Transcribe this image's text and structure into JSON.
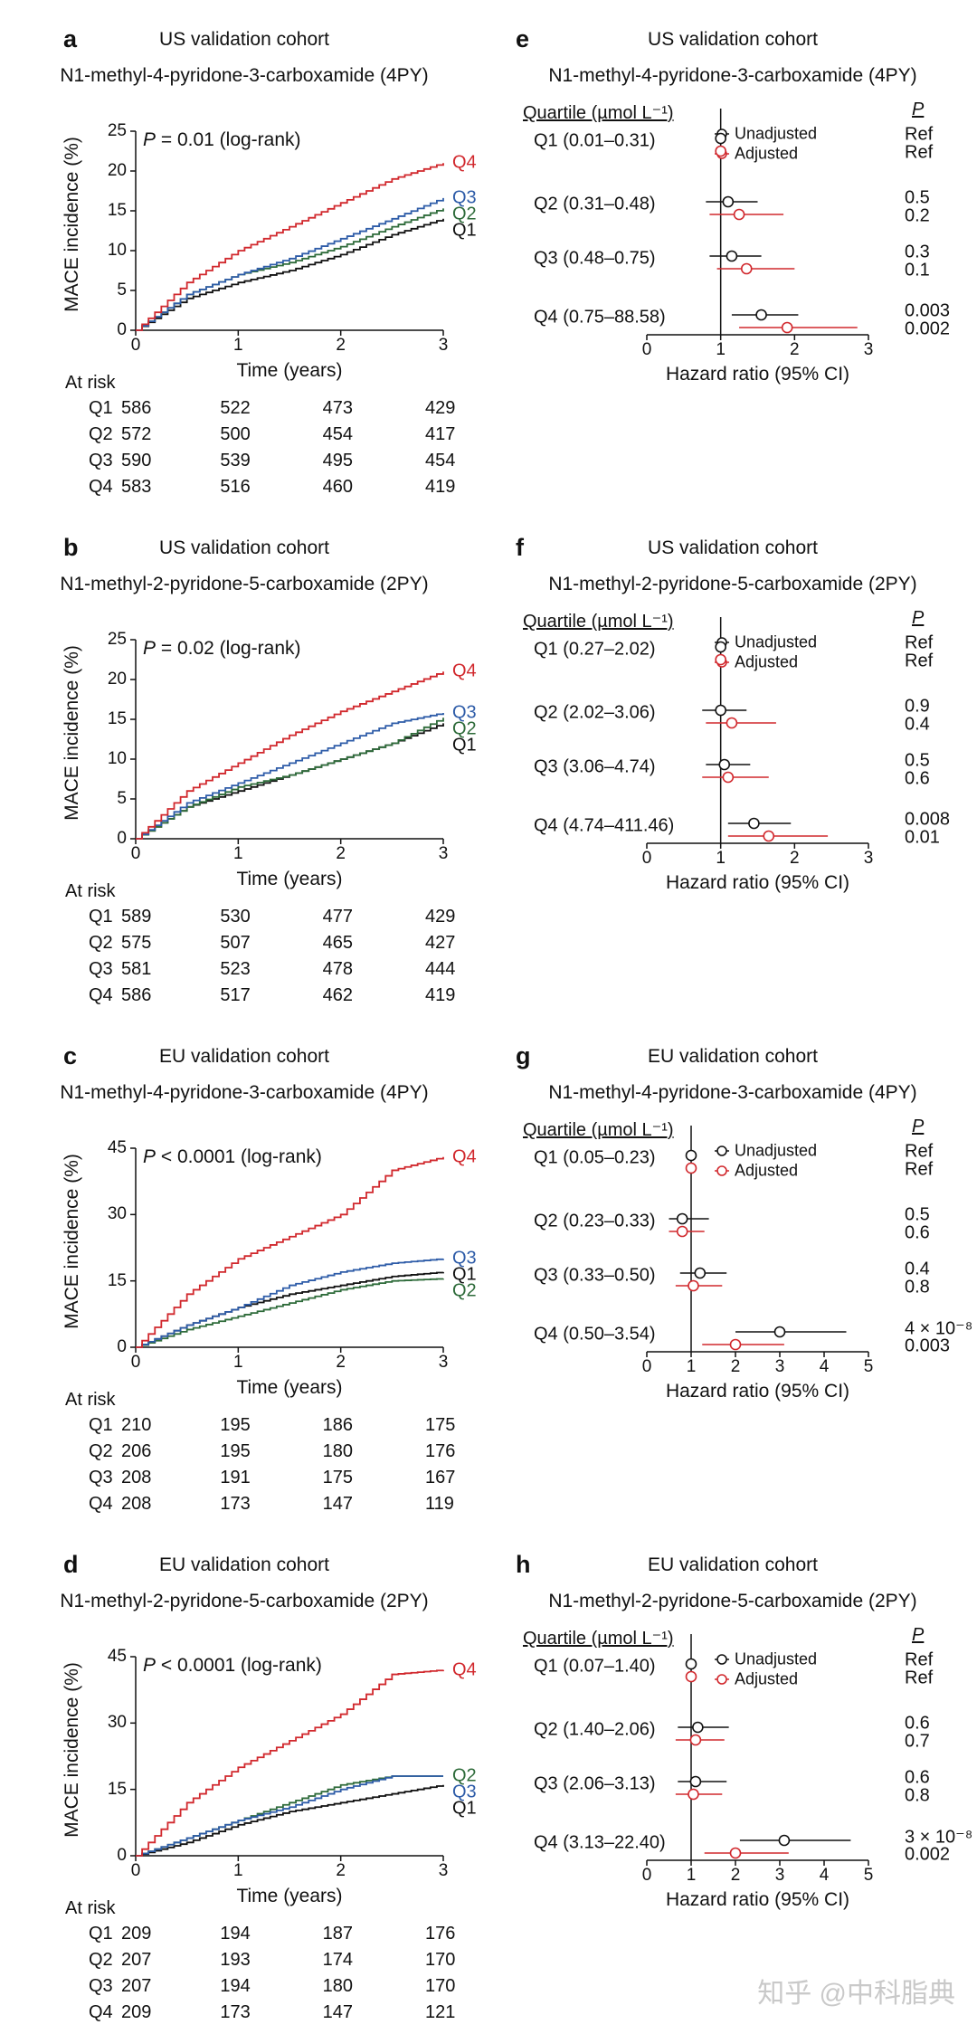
{
  "colors": {
    "Q1": "#111111",
    "Q2": "#2e6b3a",
    "Q3": "#2e5ca8",
    "Q4": "#d1282d",
    "unadjusted": "#111111",
    "adjusted": "#d1282d"
  },
  "watermark": "知乎 @中科脂典",
  "chart_data": [
    {
      "panel": "a",
      "type": "line",
      "subtitle": "US validation cohort",
      "title": "N1-methyl-4-pyridone-3-carboxamide (4PY)",
      "pvalue": "P = 0.01 (log-rank)",
      "xlabel": "Time (years)",
      "ylabel": "MACE incidence (%)",
      "xlim": [
        0,
        3
      ],
      "ylim": [
        0,
        25
      ],
      "xticks": [
        "0",
        "1",
        "2",
        "3"
      ],
      "yticks": [
        "0",
        "5",
        "10",
        "15",
        "20",
        "25"
      ],
      "series": [
        {
          "name": "Q1",
          "x": [
            0,
            0.5,
            1,
            1.5,
            2,
            2.5,
            3
          ],
          "y": [
            0,
            4,
            6,
            7.5,
            9.5,
            12,
            14
          ]
        },
        {
          "name": "Q2",
          "x": [
            0,
            0.5,
            1,
            1.5,
            2,
            2.5,
            3
          ],
          "y": [
            0,
            4.5,
            7,
            8.5,
            10.5,
            13,
            15.3
          ]
        },
        {
          "name": "Q3",
          "x": [
            0,
            0.5,
            1,
            1.5,
            2,
            2.5,
            3
          ],
          "y": [
            0,
            4.5,
            7,
            9,
            11.5,
            14,
            16.6
          ]
        },
        {
          "name": "Q4",
          "x": [
            0,
            0.5,
            1,
            1.5,
            2,
            2.5,
            3
          ],
          "y": [
            0,
            6,
            10,
            13,
            16,
            19,
            21
          ]
        }
      ],
      "at_risk_title": "At risk",
      "at_risk": [
        {
          "q": "Q1",
          "vals": [
            "586",
            "522",
            "473",
            "429"
          ]
        },
        {
          "q": "Q2",
          "vals": [
            "572",
            "500",
            "454",
            "417"
          ]
        },
        {
          "q": "Q3",
          "vals": [
            "590",
            "539",
            "495",
            "454"
          ]
        },
        {
          "q": "Q4",
          "vals": [
            "583",
            "516",
            "460",
            "419"
          ]
        }
      ]
    },
    {
      "panel": "e",
      "type": "forest",
      "subtitle": "US validation cohort",
      "title": "N1-methyl-4-pyridone-3-carboxamide (4PY)",
      "column_header": "Quartile (µmol L⁻¹)",
      "p_header": "P",
      "legend": [
        "Unadjusted",
        "Adjusted"
      ],
      "xlabel": "Hazard ratio (95% CI)",
      "xlim": [
        0,
        3
      ],
      "xticks": [
        "0",
        "1",
        "2",
        "3"
      ],
      "rows": [
        {
          "label": "Q1 (0.01–0.31)",
          "unadj": {
            "hr": 1,
            "lo": 1,
            "hi": 1
          },
          "adj": {
            "hr": 1,
            "lo": 1,
            "hi": 1
          },
          "p_unadj": "Ref",
          "p_adj": "Ref"
        },
        {
          "label": "Q2 (0.31–0.48)",
          "unadj": {
            "hr": 1.1,
            "lo": 0.8,
            "hi": 1.5
          },
          "adj": {
            "hr": 1.25,
            "lo": 0.85,
            "hi": 1.85
          },
          "p_unadj": "0.5",
          "p_adj": "0.2"
        },
        {
          "label": "Q3 (0.48–0.75)",
          "unadj": {
            "hr": 1.15,
            "lo": 0.85,
            "hi": 1.55
          },
          "adj": {
            "hr": 1.35,
            "lo": 0.95,
            "hi": 2.0
          },
          "p_unadj": "0.3",
          "p_adj": "0.1"
        },
        {
          "label": "Q4 (0.75–88.58)",
          "unadj": {
            "hr": 1.55,
            "lo": 1.15,
            "hi": 2.05
          },
          "adj": {
            "hr": 1.9,
            "lo": 1.25,
            "hi": 2.85
          },
          "p_unadj": "0.003",
          "p_adj": "0.002"
        }
      ]
    },
    {
      "panel": "b",
      "type": "line",
      "subtitle": "US validation cohort",
      "title": "N1-methyl-2-pyridone-5-carboxamide (2PY)",
      "pvalue": "P = 0.02 (log-rank)",
      "xlabel": "Time (years)",
      "ylabel": "MACE incidence (%)",
      "xlim": [
        0,
        3
      ],
      "ylim": [
        0,
        25
      ],
      "xticks": [
        "0",
        "1",
        "2",
        "3"
      ],
      "yticks": [
        "0",
        "5",
        "10",
        "15",
        "20",
        "25"
      ],
      "series": [
        {
          "name": "Q1",
          "x": [
            0,
            0.5,
            1,
            1.5,
            2,
            2.5,
            3
          ],
          "y": [
            0,
            4,
            6,
            8,
            10,
            12,
            14.5
          ]
        },
        {
          "name": "Q2",
          "x": [
            0,
            0.5,
            1,
            1.5,
            2,
            2.5,
            3
          ],
          "y": [
            0,
            4,
            6.5,
            8,
            10,
            12,
            15.2
          ]
        },
        {
          "name": "Q3",
          "x": [
            0,
            0.5,
            1,
            1.5,
            2,
            2.5,
            3
          ],
          "y": [
            0,
            4.5,
            7,
            9.5,
            12,
            14.5,
            15.8
          ]
        },
        {
          "name": "Q4",
          "x": [
            0,
            0.5,
            1,
            1.5,
            2,
            2.5,
            3
          ],
          "y": [
            0,
            6,
            9.5,
            13,
            16,
            18.5,
            21
          ]
        }
      ],
      "at_risk_title": "At risk",
      "at_risk": [
        {
          "q": "Q1",
          "vals": [
            "589",
            "530",
            "477",
            "429"
          ]
        },
        {
          "q": "Q2",
          "vals": [
            "575",
            "507",
            "465",
            "427"
          ]
        },
        {
          "q": "Q3",
          "vals": [
            "581",
            "523",
            "478",
            "444"
          ]
        },
        {
          "q": "Q4",
          "vals": [
            "586",
            "517",
            "462",
            "419"
          ]
        }
      ]
    },
    {
      "panel": "f",
      "type": "forest",
      "subtitle": "US validation cohort",
      "title": "N1-methyl-2-pyridone-5-carboxamide (2PY)",
      "column_header": "Quartile (µmol L⁻¹)",
      "p_header": "P",
      "legend": [
        "Unadjusted",
        "Adjusted"
      ],
      "xlabel": "Hazard ratio (95% CI)",
      "xlim": [
        0,
        3
      ],
      "xticks": [
        "0",
        "1",
        "2",
        "3"
      ],
      "rows": [
        {
          "label": "Q1 (0.27–2.02)",
          "unadj": {
            "hr": 1,
            "lo": 1,
            "hi": 1
          },
          "adj": {
            "hr": 1,
            "lo": 1,
            "hi": 1
          },
          "p_unadj": "Ref",
          "p_adj": "Ref"
        },
        {
          "label": "Q2 (2.02–3.06)",
          "unadj": {
            "hr": 1.0,
            "lo": 0.75,
            "hi": 1.35
          },
          "adj": {
            "hr": 1.15,
            "lo": 0.8,
            "hi": 1.75
          },
          "p_unadj": "0.9",
          "p_adj": "0.4"
        },
        {
          "label": "Q3 (3.06–4.74)",
          "unadj": {
            "hr": 1.05,
            "lo": 0.8,
            "hi": 1.4
          },
          "adj": {
            "hr": 1.1,
            "lo": 0.75,
            "hi": 1.65
          },
          "p_unadj": "0.5",
          "p_adj": "0.6"
        },
        {
          "label": "Q4 (4.74–411.46)",
          "unadj": {
            "hr": 1.45,
            "lo": 1.1,
            "hi": 1.95
          },
          "adj": {
            "hr": 1.65,
            "lo": 1.1,
            "hi": 2.45
          },
          "p_unadj": "0.008",
          "p_adj": "0.01"
        }
      ]
    },
    {
      "panel": "c",
      "type": "line",
      "subtitle": "EU validation cohort",
      "title": "N1-methyl-4-pyridone-3-carboxamide (4PY)",
      "pvalue": "P < 0.0001 (log-rank)",
      "xlabel": "Time (years)",
      "ylabel": "MACE incidence (%)",
      "xlim": [
        0,
        3
      ],
      "ylim": [
        0,
        45
      ],
      "xticks": [
        "0",
        "1",
        "2",
        "3"
      ],
      "yticks": [
        "0",
        "15",
        "30",
        "45"
      ],
      "series": [
        {
          "name": "Q1",
          "x": [
            0,
            0.5,
            1,
            1.5,
            2,
            2.5,
            3
          ],
          "y": [
            0,
            5,
            9,
            12,
            14,
            16,
            17
          ]
        },
        {
          "name": "Q2",
          "x": [
            0,
            0.5,
            1,
            1.5,
            2,
            2.5,
            3
          ],
          "y": [
            0,
            4,
            7,
            10,
            13,
            15,
            15.5
          ]
        },
        {
          "name": "Q3",
          "x": [
            0,
            0.5,
            1,
            1.5,
            2,
            2.5,
            3
          ],
          "y": [
            0,
            5,
            9,
            14,
            17,
            19,
            20
          ]
        },
        {
          "name": "Q4",
          "x": [
            0,
            0.5,
            1,
            1.5,
            2,
            2.5,
            3
          ],
          "y": [
            0,
            12,
            20,
            25,
            30,
            40,
            43
          ]
        }
      ],
      "at_risk_title": "At risk",
      "at_risk": [
        {
          "q": "Q1",
          "vals": [
            "210",
            "195",
            "186",
            "175"
          ]
        },
        {
          "q": "Q2",
          "vals": [
            "206",
            "195",
            "180",
            "176"
          ]
        },
        {
          "q": "Q3",
          "vals": [
            "208",
            "191",
            "175",
            "167"
          ]
        },
        {
          "q": "Q4",
          "vals": [
            "208",
            "173",
            "147",
            "119"
          ]
        }
      ]
    },
    {
      "panel": "g",
      "type": "forest",
      "subtitle": "EU validation cohort",
      "title": "N1-methyl-4-pyridone-3-carboxamide (4PY)",
      "column_header": "Quartile (µmol L⁻¹)",
      "p_header": "P",
      "legend": [
        "Unadjusted",
        "Adjusted"
      ],
      "xlabel": "Hazard ratio (95% CI)",
      "xlim": [
        0,
        5
      ],
      "xticks": [
        "0",
        "1",
        "2",
        "3",
        "4",
        "5"
      ],
      "rows": [
        {
          "label": "Q1 (0.05–0.23)",
          "unadj": {
            "hr": 1,
            "lo": 1,
            "hi": 1
          },
          "adj": {
            "hr": 1,
            "lo": 1,
            "hi": 1
          },
          "p_unadj": "Ref",
          "p_adj": "Ref"
        },
        {
          "label": "Q2 (0.23–0.33)",
          "unadj": {
            "hr": 0.8,
            "lo": 0.5,
            "hi": 1.4
          },
          "adj": {
            "hr": 0.8,
            "lo": 0.5,
            "hi": 1.3
          },
          "p_unadj": "0.5",
          "p_adj": "0.6"
        },
        {
          "label": "Q3 (0.33–0.50)",
          "unadj": {
            "hr": 1.2,
            "lo": 0.75,
            "hi": 1.8
          },
          "adj": {
            "hr": 1.05,
            "lo": 0.65,
            "hi": 1.7
          },
          "p_unadj": "0.4",
          "p_adj": "0.8"
        },
        {
          "label": "Q4 (0.50–3.54)",
          "unadj": {
            "hr": 3.0,
            "lo": 2.0,
            "hi": 4.5
          },
          "adj": {
            "hr": 2.0,
            "lo": 1.25,
            "hi": 3.1
          },
          "p_unadj": "4 × 10⁻⁸",
          "p_adj": "0.003"
        }
      ]
    },
    {
      "panel": "d",
      "type": "line",
      "subtitle": "EU validation cohort",
      "title": "N1-methyl-2-pyridone-5-carboxamide (2PY)",
      "pvalue": "P < 0.0001 (log-rank)",
      "xlabel": "Time (years)",
      "ylabel": "MACE incidence (%)",
      "xlim": [
        0,
        3
      ],
      "ylim": [
        0,
        45
      ],
      "xticks": [
        "0",
        "1",
        "2",
        "3"
      ],
      "yticks": [
        "0",
        "15",
        "30",
        "45"
      ],
      "series": [
        {
          "name": "Q1",
          "x": [
            0,
            0.5,
            1,
            1.5,
            2,
            2.5,
            3
          ],
          "y": [
            0,
            3,
            7,
            10,
            12,
            14,
            16
          ]
        },
        {
          "name": "Q2",
          "x": [
            0,
            0.5,
            1,
            1.5,
            2,
            2.5,
            3
          ],
          "y": [
            0,
            4,
            8,
            12,
            16,
            18,
            18
          ]
        },
        {
          "name": "Q3",
          "x": [
            0,
            0.5,
            1,
            1.5,
            2,
            2.5,
            3
          ],
          "y": [
            0,
            4,
            8,
            11,
            15,
            18,
            18
          ]
        },
        {
          "name": "Q4",
          "x": [
            0,
            0.5,
            1,
            1.5,
            2,
            2.5,
            3
          ],
          "y": [
            0,
            12,
            20,
            26,
            32,
            41,
            42
          ]
        }
      ],
      "at_risk_title": "At risk",
      "at_risk": [
        {
          "q": "Q1",
          "vals": [
            "209",
            "194",
            "187",
            "176"
          ]
        },
        {
          "q": "Q2",
          "vals": [
            "207",
            "193",
            "174",
            "170"
          ]
        },
        {
          "q": "Q3",
          "vals": [
            "207",
            "194",
            "180",
            "170"
          ]
        },
        {
          "q": "Q4",
          "vals": [
            "209",
            "173",
            "147",
            "121"
          ]
        }
      ]
    },
    {
      "panel": "h",
      "type": "forest",
      "subtitle": "EU validation cohort",
      "title": "N1-methyl-2-pyridone-5-carboxamide (2PY)",
      "column_header": "Quartile (µmol L⁻¹)",
      "p_header": "P",
      "legend": [
        "Unadjusted",
        "Adjusted"
      ],
      "xlabel": "Hazard ratio (95% CI)",
      "xlim": [
        0,
        5
      ],
      "xticks": [
        "0",
        "1",
        "2",
        "3",
        "4",
        "5"
      ],
      "rows": [
        {
          "label": "Q1 (0.07–1.40)",
          "unadj": {
            "hr": 1,
            "lo": 1,
            "hi": 1
          },
          "adj": {
            "hr": 1,
            "lo": 1,
            "hi": 1
          },
          "p_unadj": "Ref",
          "p_adj": "Ref"
        },
        {
          "label": "Q2 (1.40–2.06)",
          "unadj": {
            "hr": 1.15,
            "lo": 0.7,
            "hi": 1.85
          },
          "adj": {
            "hr": 1.1,
            "lo": 0.65,
            "hi": 1.75
          },
          "p_unadj": "0.6",
          "p_adj": "0.7"
        },
        {
          "label": "Q3 (2.06–3.13)",
          "unadj": {
            "hr": 1.1,
            "lo": 0.7,
            "hi": 1.8
          },
          "adj": {
            "hr": 1.05,
            "lo": 0.65,
            "hi": 1.7
          },
          "p_unadj": "0.6",
          "p_adj": "0.8"
        },
        {
          "label": "Q4 (3.13–22.40)",
          "unadj": {
            "hr": 3.1,
            "lo": 2.1,
            "hi": 4.6
          },
          "adj": {
            "hr": 2.0,
            "lo": 1.3,
            "hi": 3.2
          },
          "p_unadj": "3 × 10⁻⁸",
          "p_adj": "0.002"
        }
      ]
    }
  ]
}
